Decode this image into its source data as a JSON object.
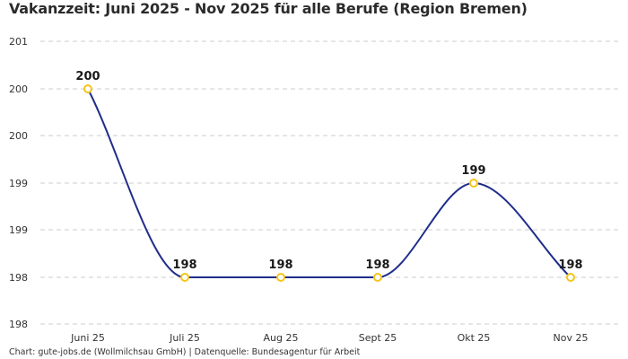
{
  "title": "Vakanzzeit: Juni 2025 - Nov 2025 für alle Berufe (Region Bremen)",
  "footer": "Chart: gute-jobs.de (Wollmilchsau GmbH) | Datenquelle: Bundesagentur für Arbeit",
  "colors": {
    "line": "#1f2d8a",
    "marker": "#f5c518",
    "grid": "#cccccc"
  },
  "chart_data": {
    "type": "line",
    "title": "Vakanzzeit: Juni 2025 - Nov 2025 für alle Berufe (Region Bremen)",
    "xlabel": "",
    "ylabel": "",
    "categories": [
      "Juni 25",
      "Juli 25",
      "Aug 25",
      "Sept 25",
      "Okt 25",
      "Nov 25"
    ],
    "series": [
      {
        "name": "Vakanzzeit",
        "values": [
          200,
          198,
          198,
          198,
          199,
          198
        ]
      }
    ],
    "data_labels": [
      "200",
      "198",
      "198",
      "198",
      "199",
      "198"
    ],
    "y_tick_labels": [
      "201",
      "200",
      "200",
      "199",
      "199",
      "198",
      "198"
    ],
    "ylim": [
      197.8,
      200.8
    ],
    "grid": true,
    "legend": "none",
    "smooth": true
  }
}
